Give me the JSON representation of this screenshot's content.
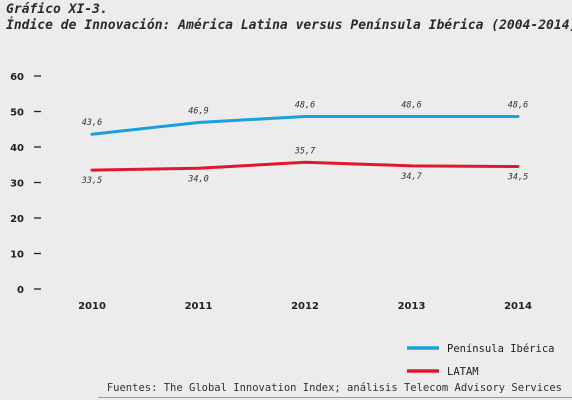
{
  "header": {
    "figure_label": "Gráfico XI-3.",
    "title": "Índice de Innovación: América Latina versus Península Ibérica (2004-2014)"
  },
  "chart_data": {
    "type": "line",
    "x": [
      "2010",
      "2011",
      "2012",
      "2013",
      "2014"
    ],
    "series": [
      {
        "name": "Península Ibérica",
        "color": "#1aa0dc",
        "values": [
          43.6,
          46.9,
          48.6,
          48.6,
          48.6
        ],
        "labels": [
          "43,6",
          "46,9",
          "48,6",
          "48,6",
          "48,6"
        ]
      },
      {
        "name": "LATAM",
        "color": "#e0182d",
        "values": [
          33.5,
          34.0,
          35.7,
          34.7,
          34.5
        ],
        "labels": [
          "33,5",
          "34,0",
          "35,7",
          "34,7",
          "34,5"
        ]
      }
    ],
    "ylim": [
      0,
      60
    ],
    "yticks": [
      0,
      10,
      20,
      30,
      40,
      50,
      60
    ],
    "grid": false,
    "legend_position": "bottom-right"
  },
  "source": "Fuentes: The Global Innovation Index; análisis Telecom Advisory Services"
}
